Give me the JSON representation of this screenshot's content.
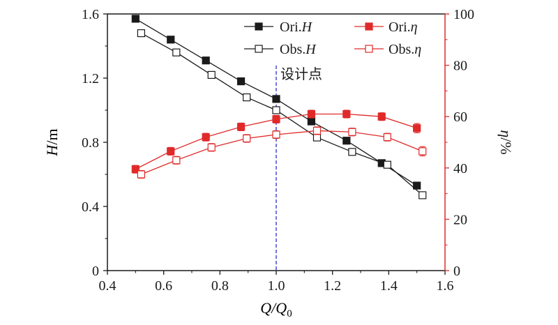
{
  "chart_data": {
    "type": "line",
    "xlabel": {
      "main": "Q/Q",
      "sub": "0"
    },
    "ylabel_left": {
      "main": "H",
      "rest": "/m"
    },
    "ylabel_right": {
      "main": "η",
      "rest": "/%"
    },
    "xlim": [
      0.4,
      1.6
    ],
    "ylim_left": [
      0,
      1.6
    ],
    "ylim_right": [
      0,
      100
    ],
    "x_ticks": [
      "0.4",
      "0.6",
      "0.8",
      "1.0",
      "1.2",
      "1.4",
      "1.6"
    ],
    "y_left_ticks": [
      "0",
      "0.4",
      "0.8",
      "1.2",
      "1.6"
    ],
    "y_right_ticks": [
      "0",
      "20",
      "40",
      "60",
      "80",
      "100"
    ],
    "grid": false,
    "legend_placement": "top-center",
    "annotation": {
      "text": "设计点",
      "x": 1.0
    },
    "colors": {
      "black": "#1a1a1a",
      "red": "#e02a2a",
      "dashed_line": "#3a3acc"
    },
    "series": [
      {
        "name": "Ori.H",
        "label_main": "Ori.",
        "label_italic": "H",
        "axis": "left",
        "color": "#1a1a1a",
        "marker": "filled-square",
        "x": [
          0.5,
          0.625,
          0.75,
          0.875,
          1.0,
          1.125,
          1.25,
          1.375,
          1.5
        ],
        "y": [
          1.57,
          1.44,
          1.31,
          1.18,
          1.07,
          0.93,
          0.81,
          0.67,
          0.53
        ],
        "err": []
      },
      {
        "name": "Obs.H",
        "label_main": "Obs.",
        "label_italic": "H",
        "axis": "left",
        "color": "#1a1a1a",
        "marker": "open-square",
        "x": [
          0.52,
          0.645,
          0.77,
          0.895,
          1.0,
          1.145,
          1.27,
          1.395,
          1.52
        ],
        "y": [
          1.48,
          1.36,
          1.22,
          1.08,
          1.0,
          0.83,
          0.74,
          0.66,
          0.47
        ],
        "err": []
      },
      {
        "name": "Ori.η",
        "label_main": "Ori.",
        "label_italic": "η",
        "axis": "right",
        "color": "#e02a2a",
        "marker": "filled-square",
        "x": [
          0.5,
          0.625,
          0.75,
          0.875,
          1.0,
          1.125,
          1.25,
          1.375,
          1.5
        ],
        "y": [
          39.5,
          46.5,
          52,
          56,
          59,
          61,
          61,
          60,
          55.5
        ],
        "err": [
          1.5,
          1.5,
          1.5,
          1.5,
          1.5,
          1.5,
          1.5,
          1.5,
          1.8
        ]
      },
      {
        "name": "Obs.η",
        "label_main": "Obs.",
        "label_italic": "η",
        "axis": "right",
        "color": "#e02a2a",
        "marker": "open-square",
        "x": [
          0.52,
          0.645,
          0.77,
          0.895,
          1.0,
          1.145,
          1.27,
          1.395,
          1.52
        ],
        "y": [
          37.5,
          43,
          48,
          51.5,
          53,
          54.5,
          54,
          52,
          46.5
        ],
        "err": [
          1.5,
          1.5,
          1.5,
          1.5,
          1.5,
          1.5,
          1.5,
          1.5,
          1.8
        ]
      }
    ]
  }
}
